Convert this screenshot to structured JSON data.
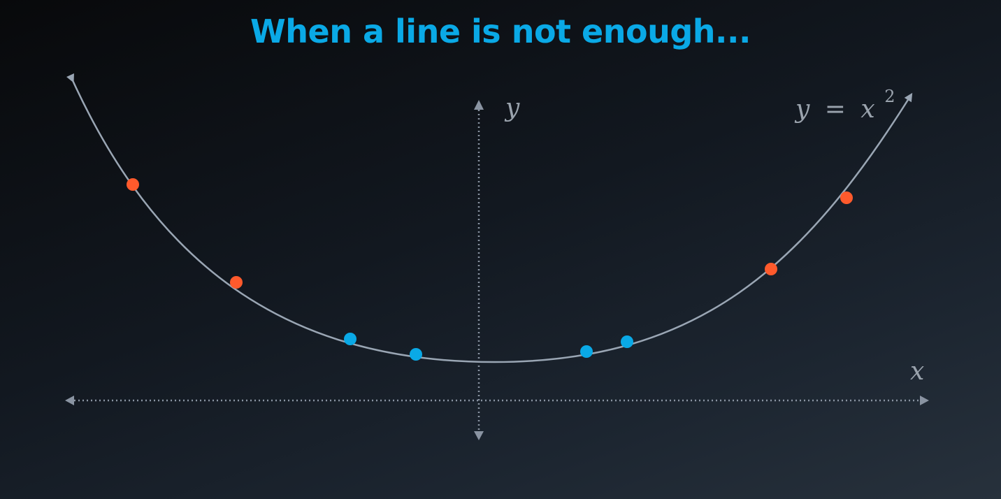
{
  "slide": {
    "title": "When a line is not enough...",
    "title_color": "#0aa9e6"
  },
  "diagram": {
    "curve_label": {
      "lhs": "y",
      "equals": "=",
      "base": "x",
      "exponent": "2"
    },
    "axis_x_label": "x",
    "axis_y_label": "y",
    "colors": {
      "curve": "#9aa6b4",
      "axis": "#8a94a2",
      "label": "#9aa3ad",
      "point_red": "#ff5a2c",
      "point_blue": "#0aa9e6"
    },
    "point_groups": [
      {
        "color": "red",
        "count": 4
      },
      {
        "color": "blue",
        "count": 4
      }
    ]
  }
}
